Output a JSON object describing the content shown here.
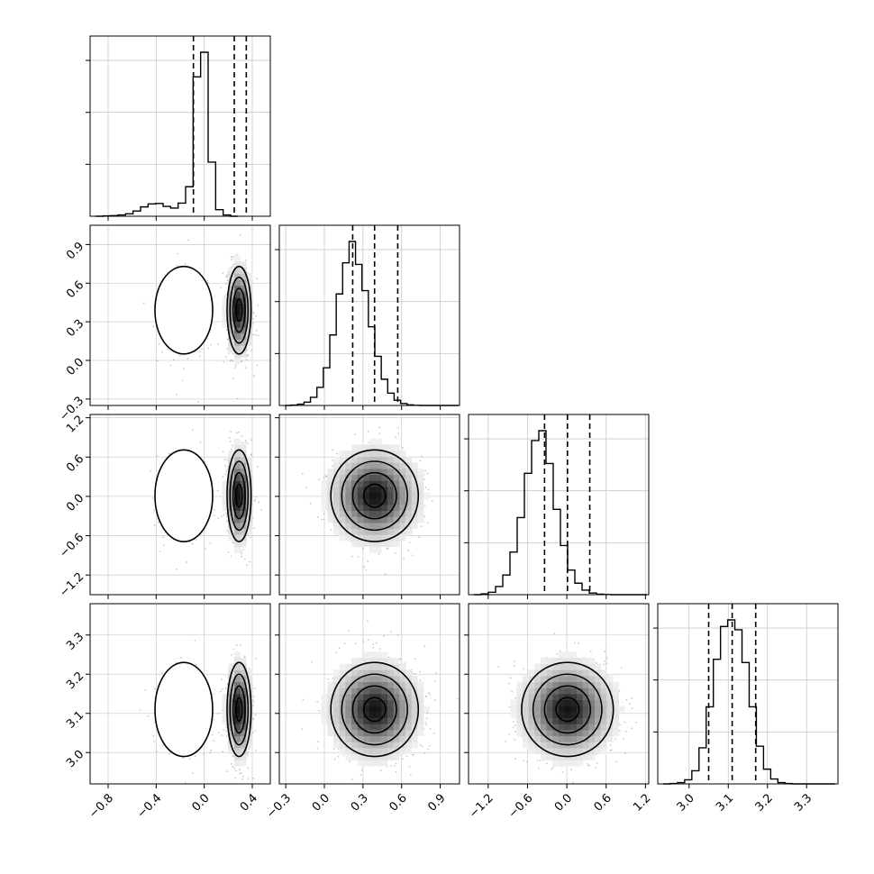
{
  "chart_data": {
    "type": "corner",
    "title": "",
    "grid": true,
    "parameters": [
      {
        "index": 0,
        "label": "",
        "range": [
          -0.95,
          0.55
        ],
        "ticks": [
          -0.8,
          -0.4,
          0.0,
          0.4
        ],
        "tick_labels": [
          "−0.8",
          "−0.4",
          "0.0",
          "0.4"
        ],
        "quantiles": [
          -0.09,
          0.25,
          0.35
        ],
        "histogram": {
          "bin_width": 0.0625,
          "counts": [
            0,
            2,
            4,
            8,
            15,
            32,
            57,
            75,
            78,
            60,
            50,
            80,
            180,
            850,
            1000,
            330,
            40,
            8,
            0
          ]
        },
        "peaks": [
          {
            "center": -0.17,
            "sigma": 0.12,
            "weight": 0.28
          },
          {
            "center": 0.29,
            "sigma": 0.05,
            "weight": 0.72
          }
        ]
      },
      {
        "index": 1,
        "label": "",
        "range": [
          -0.35,
          1.05
        ],
        "ticks": [
          -0.3,
          0.0,
          0.3,
          0.6,
          0.9
        ],
        "tick_labels": [
          "−0.3",
          "0.0",
          "0.3",
          "0.6",
          "0.9"
        ],
        "quantiles": [
          0.22,
          0.39,
          0.57
        ],
        "histogram": {
          "bin_width": 0.05,
          "counts": [
            0,
            2,
            8,
            20,
            50,
            110,
            230,
            430,
            680,
            870,
            1000,
            860,
            700,
            480,
            300,
            160,
            75,
            32,
            12,
            4,
            1,
            0,
            0,
            0,
            0,
            0,
            0,
            0
          ]
        },
        "peaks": [
          {
            "center": 0.39,
            "sigma": 0.17,
            "weight": 1
          }
        ]
      },
      {
        "index": 2,
        "label": "",
        "range": [
          -1.5,
          1.25
        ],
        "ticks": [
          -1.2,
          -0.6,
          0.0,
          0.6,
          1.2
        ],
        "tick_labels": [
          "−1.2",
          "−0.6",
          "0.0",
          "0.6",
          "1.2"
        ],
        "quantiles": [
          -0.34,
          0.01,
          0.35
        ],
        "histogram": {
          "bin_width": 0.11,
          "counts": [
            0,
            5,
            15,
            50,
            120,
            260,
            470,
            740,
            940,
            1000,
            800,
            520,
            300,
            150,
            70,
            28,
            10,
            3,
            1,
            0,
            0,
            0,
            0,
            0,
            0
          ]
        },
        "peaks": [
          {
            "center": 0.01,
            "sigma": 0.35,
            "weight": 1
          }
        ]
      },
      {
        "index": 3,
        "label": "",
        "range": [
          2.92,
          3.38
        ],
        "ticks": [
          3.0,
          3.1,
          3.2,
          3.3
        ],
        "tick_labels": [
          "3.0",
          "3.1",
          "3.2",
          "3.3"
        ],
        "quantiles": [
          3.05,
          3.11,
          3.17
        ],
        "histogram": {
          "bin_width": 0.0183,
          "counts": [
            0,
            2,
            8,
            25,
            80,
            220,
            470,
            760,
            960,
            1000,
            940,
            740,
            470,
            230,
            90,
            30,
            8,
            2,
            0,
            0,
            0,
            0,
            0,
            0,
            0
          ]
        },
        "peaks": [
          {
            "center": 3.11,
            "sigma": 0.06,
            "weight": 1
          }
        ]
      }
    ]
  }
}
